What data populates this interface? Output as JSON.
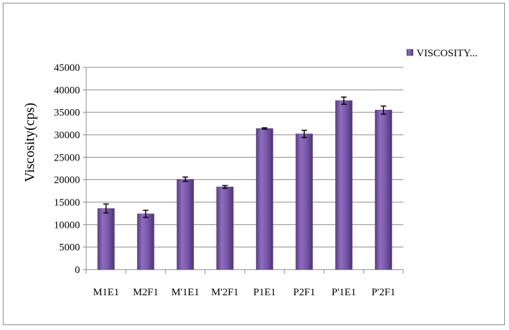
{
  "chart_data": {
    "type": "bar",
    "title": "",
    "xlabel": "",
    "ylabel": "Viscosity(cps)",
    "ylim": [
      0,
      45000
    ],
    "yticks": [
      0,
      5000,
      10000,
      15000,
      20000,
      25000,
      30000,
      35000,
      40000,
      45000
    ],
    "grid": true,
    "legend_position": "right",
    "categories": [
      "M1E1",
      "M2F1",
      "M'1E1",
      "M'2F1",
      "P1E1",
      "P2F1",
      "P'1E1",
      "P'2F1"
    ],
    "series": [
      {
        "name": "VISCOSITY...",
        "color": "#7b5aa6",
        "values": [
          13600,
          12400,
          20100,
          18400,
          31400,
          30200,
          37600,
          35500
        ],
        "errors": [
          1000,
          800,
          500,
          300,
          150,
          800,
          800,
          900
        ]
      }
    ]
  }
}
